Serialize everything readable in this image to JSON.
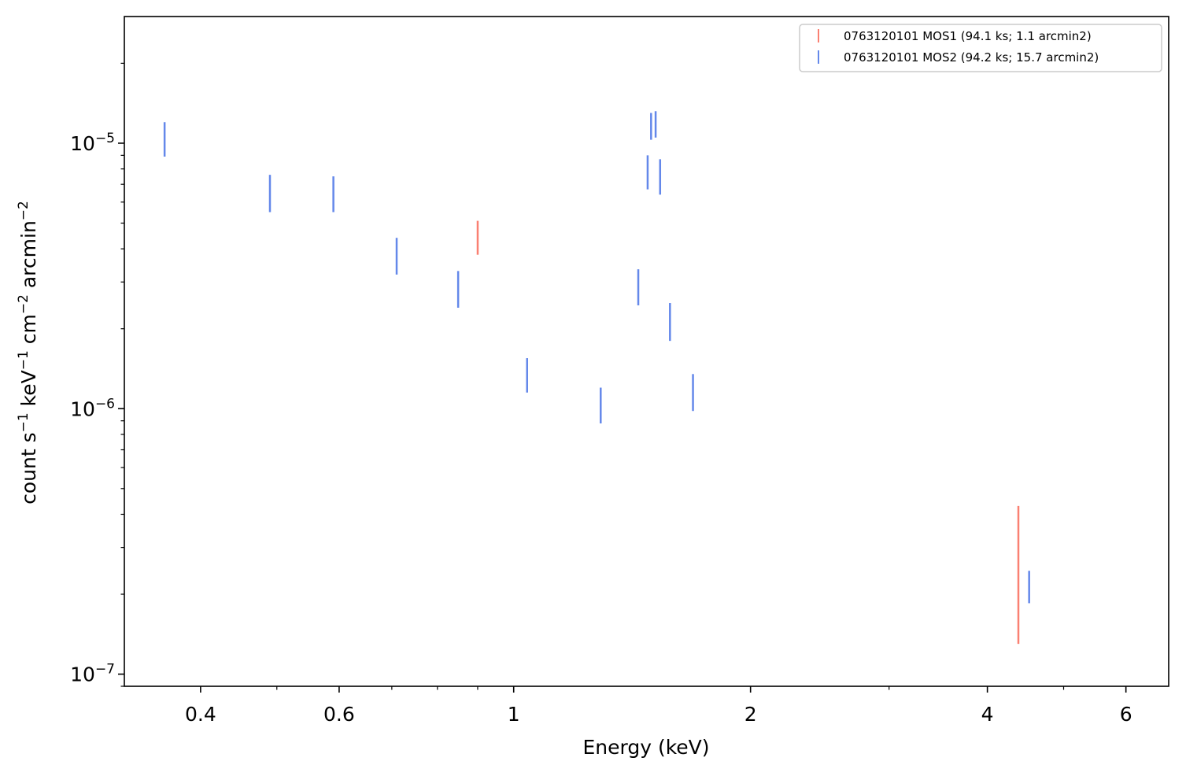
{
  "chart_data": {
    "type": "scatter",
    "xlabel": "Energy (keV)",
    "ylabel_parts": [
      "count s",
      "−1",
      " keV",
      "−1",
      " cm",
      "−2",
      " arcmin",
      "−2"
    ],
    "xscale": "log",
    "yscale": "log",
    "xlim": [
      0.32,
      6.8
    ],
    "ylim": [
      9e-08,
      3e-05
    ],
    "x_ticks": [
      {
        "value": 0.4,
        "label": "0.4"
      },
      {
        "value": 0.6,
        "label": "0.6"
      },
      {
        "value": 1,
        "label": "1"
      },
      {
        "value": 2,
        "label": "2"
      },
      {
        "value": 4,
        "label": "4"
      },
      {
        "value": 6,
        "label": "6"
      }
    ],
    "y_ticks": [
      {
        "value": 1e-05,
        "base": "10",
        "exp": "−5"
      },
      {
        "value": 1e-06,
        "base": "10",
        "exp": "−6"
      },
      {
        "value": 1e-07,
        "base": "10",
        "exp": "−7"
      }
    ],
    "legend_position": "upper-right",
    "series": [
      {
        "name": "0763120101 MOS1 (94.1 ks; 1.1 arcmin2)",
        "color": "#fa8072",
        "points": [
          {
            "x": 0.9,
            "y": 4.4e-06,
            "ylo": 3.8e-06,
            "yhi": 5.1e-06
          },
          {
            "x": 4.38,
            "y": 2.4e-07,
            "ylo": 1.3e-07,
            "yhi": 4.3e-07
          }
        ]
      },
      {
        "name": "0763120101 MOS2 (94.2 ks; 15.7 arcmin2)",
        "color": "#6488ea",
        "points": [
          {
            "x": 0.36,
            "y": 1.05e-05,
            "ylo": 8.9e-06,
            "yhi": 1.2e-05
          },
          {
            "x": 0.49,
            "y": 6.4e-06,
            "ylo": 5.5e-06,
            "yhi": 7.6e-06
          },
          {
            "x": 0.59,
            "y": 6.4e-06,
            "ylo": 5.5e-06,
            "yhi": 7.5e-06
          },
          {
            "x": 0.71,
            "y": 3.8e-06,
            "ylo": 3.2e-06,
            "yhi": 4.4e-06
          },
          {
            "x": 0.85,
            "y": 2.8e-06,
            "ylo": 2.4e-06,
            "yhi": 3.3e-06
          },
          {
            "x": 1.04,
            "y": 1.35e-06,
            "ylo": 1.15e-06,
            "yhi": 1.55e-06
          },
          {
            "x": 1.29,
            "y": 1.05e-06,
            "ylo": 8.8e-07,
            "yhi": 1.2e-06
          },
          {
            "x": 1.44,
            "y": 2.9e-06,
            "ylo": 2.45e-06,
            "yhi": 3.35e-06
          },
          {
            "x": 1.48,
            "y": 7.7e-06,
            "ylo": 6.7e-06,
            "yhi": 9e-06
          },
          {
            "x": 1.495,
            "y": 1.15e-05,
            "ylo": 1.03e-05,
            "yhi": 1.3e-05
          },
          {
            "x": 1.515,
            "y": 1.17e-05,
            "ylo": 1.05e-05,
            "yhi": 1.32e-05
          },
          {
            "x": 1.535,
            "y": 7.5e-06,
            "ylo": 6.4e-06,
            "yhi": 8.7e-06
          },
          {
            "x": 1.58,
            "y": 2.15e-06,
            "ylo": 1.8e-06,
            "yhi": 2.5e-06
          },
          {
            "x": 1.69,
            "y": 1.15e-06,
            "ylo": 9.8e-07,
            "yhi": 1.35e-06
          },
          {
            "x": 4.52,
            "y": 2.1e-07,
            "ylo": 1.85e-07,
            "yhi": 2.45e-07
          }
        ]
      }
    ]
  }
}
